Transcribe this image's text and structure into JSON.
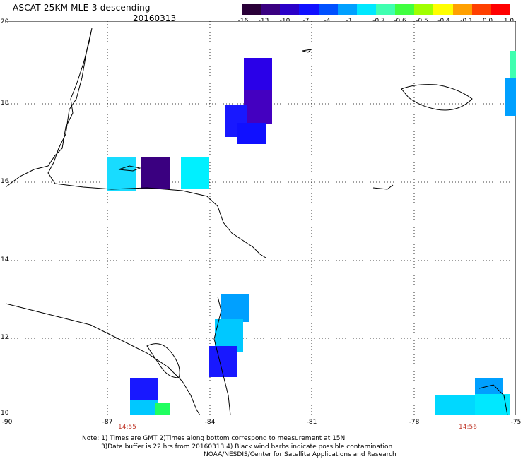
{
  "header": {
    "title": "ASCAT 25KM MLE-3 descending",
    "date": "20160313"
  },
  "colorbar": {
    "labels": [
      "-16",
      "-13",
      "-10",
      "-7",
      "-4",
      "-1",
      "-0.7",
      "-0.6",
      "-0.5",
      "-0.4",
      "-0.1",
      "0.0",
      "1.0"
    ],
    "colors": [
      "#2a0038",
      "#3a0080",
      "#2a00c8",
      "#1010ff",
      "#0050ff",
      "#00a0ff",
      "#00e8ff",
      "#40ffb0",
      "#40ff40",
      "#a0ff00",
      "#ffff00",
      "#ffa000",
      "#ff4000",
      "#ff0000"
    ]
  },
  "axes": {
    "lat_labels": [
      "20",
      "18",
      "16",
      "14",
      "12",
      "10"
    ],
    "lon_labels": [
      "-90",
      "-87",
      "-84",
      "-81",
      "-78",
      "-75"
    ]
  },
  "time_labels": [
    "14:55",
    "14:56"
  ],
  "notes": {
    "line1": "Note: 1) Times are GMT 2)Times along bottom correspond to measurement at 15N",
    "line2": "3)Data buffer is 22 hrs from 20160313 4) Black wind barbs indicate possible contamination",
    "line3": "NOAA/NESDIS/Center for Satellite Applications and Research"
  },
  "map_style": {
    "grid": "dotted",
    "coastline_color": "#000000"
  }
}
